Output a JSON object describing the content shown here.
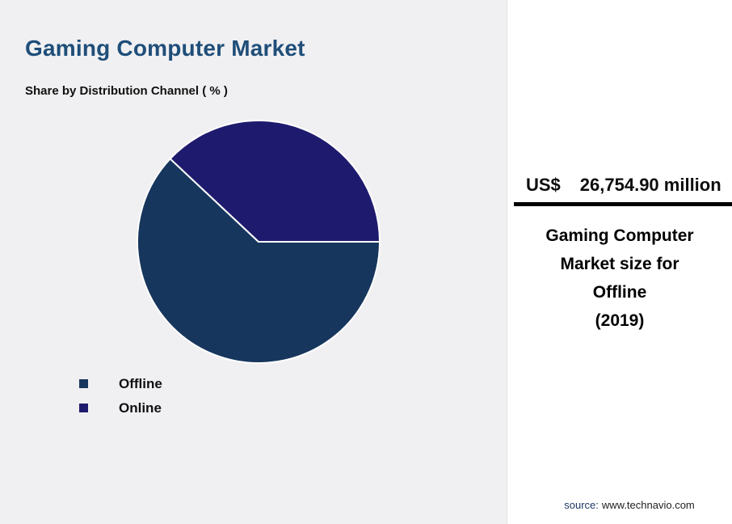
{
  "page": {
    "title": "Gaming Computer Market",
    "subtitle": "Share by Distribution Channel ( % )"
  },
  "chart_data": {
    "type": "pie",
    "title": "Share by Distribution Channel ( % )",
    "labels": [
      "Offline",
      "Online"
    ],
    "values": [
      62,
      38
    ],
    "colors": [
      "#17365d",
      "#1e1b6e"
    ],
    "start_angle_deg": 0,
    "direction": "clockwise",
    "legend_position": "bottom-left",
    "slice_border_color": "#ffffff"
  },
  "panel": {
    "value_prefix": "US$",
    "value": "26,754.90 million",
    "description_lines": [
      "Gaming Computer",
      "Market size for",
      "Offline",
      "(2019)"
    ],
    "source_label": "source:",
    "source_url": "www.technavio.com"
  },
  "colors": {
    "background_left": "#f0f0f2",
    "background_right": "#ffffff",
    "title_blue": "#1f4e79",
    "divider_black": "#000000",
    "source_navy": "#1f3864"
  }
}
